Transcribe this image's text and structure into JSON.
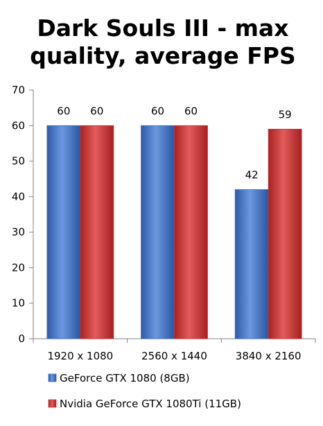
{
  "chart_data": {
    "type": "bar",
    "title_lines": [
      "Dark Souls III -  max",
      "quality,  average FPS"
    ],
    "xlabel": "",
    "ylabel": "",
    "categories": [
      "1920 x 1080",
      "2560 x 1440",
      "3840 x 2160"
    ],
    "series": [
      {
        "name": "GeForce GTX 1080 (8GB)",
        "values": [
          60,
          60,
          42
        ],
        "color": "#3f73c9"
      },
      {
        "name": "Nvidia GeForce GTX 1080Ti (11GB)",
        "values": [
          60,
          60,
          59
        ],
        "color": "#cf3535"
      }
    ],
    "ylim": [
      0,
      70
    ],
    "yticks": [
      0,
      10,
      20,
      30,
      40,
      50,
      60,
      70
    ],
    "grid": false,
    "data_labels": true,
    "legend_position": "bottom"
  }
}
